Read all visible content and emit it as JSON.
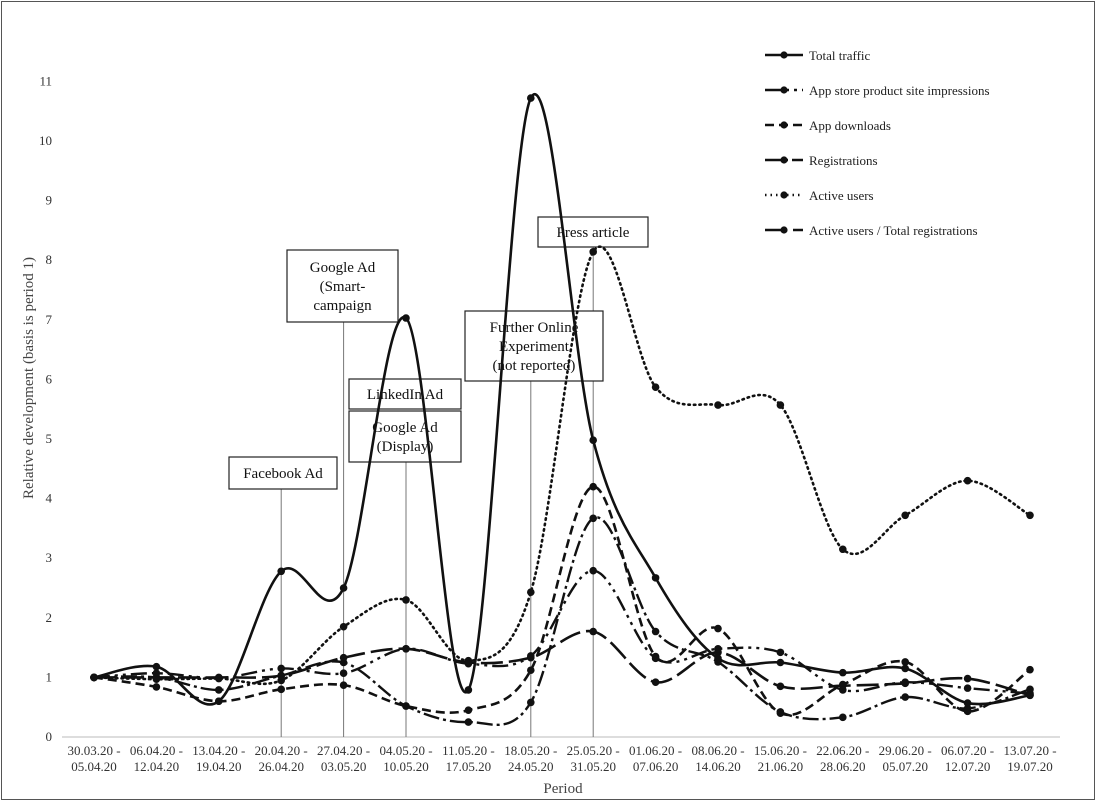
{
  "chart_data": {
    "type": "line",
    "xlabel": "Period",
    "ylabel": "Relative development (basis is period 1)",
    "ylim": [
      0,
      11
    ],
    "yticks": [
      0,
      1,
      2,
      3,
      4,
      5,
      6,
      7,
      8,
      9,
      10,
      11
    ],
    "grid": false,
    "legend_position": "top-right",
    "categories": [
      [
        "30.03.20 -",
        "05.04.20"
      ],
      [
        "06.04.20 -",
        "12.04.20"
      ],
      [
        "13.04.20 -",
        "19.04.20"
      ],
      [
        "20.04.20 -",
        "26.04.20"
      ],
      [
        "27.04.20 -",
        "03.05.20"
      ],
      [
        "04.05.20 -",
        "10.05.20"
      ],
      [
        "11.05.20 -",
        "17.05.20"
      ],
      [
        "18.05.20 -",
        "24.05.20"
      ],
      [
        "25.05.20 -",
        "31.05.20"
      ],
      [
        "01.06.20 -",
        "07.06.20"
      ],
      [
        "08.06.20 -",
        "14.06.20"
      ],
      [
        "15.06.20 -",
        "21.06.20"
      ],
      [
        "22.06.20 -",
        "28.06.20"
      ],
      [
        "29.06.20 -",
        "05.07.20"
      ],
      [
        "06.07.20 -",
        "12.07.20"
      ],
      [
        "13.07.20 -",
        "19.07.20"
      ]
    ],
    "series": [
      {
        "name": "Total traffic",
        "dash": "",
        "width": 2.6,
        "values": [
          1.0,
          1.18,
          0.6,
          2.78,
          2.5,
          7.03,
          0.79,
          10.72,
          4.98,
          2.67,
          1.32,
          1.25,
          1.08,
          1.15,
          0.57,
          0.7
        ]
      },
      {
        "name": "App store product site impressions",
        "dash": "16 5 3 5 3 5",
        "width": 2.4,
        "values": [
          1.0,
          1.07,
          0.99,
          1.15,
          1.07,
          1.48,
          1.23,
          1.36,
          2.79,
          1.32,
          1.48,
          1.42,
          0.79,
          0.92,
          0.82,
          0.73
        ]
      },
      {
        "name": "App downloads",
        "dash": "9 5",
        "width": 2.6,
        "values": [
          1.0,
          0.84,
          0.6,
          0.8,
          0.87,
          0.52,
          0.45,
          1.12,
          4.2,
          1.35,
          1.82,
          0.4,
          0.88,
          1.26,
          0.43,
          1.13
        ]
      },
      {
        "name": "Registrations",
        "dash": "16 4 3 4",
        "width": 2.4,
        "values": [
          1.0,
          1.0,
          0.79,
          1.03,
          1.25,
          0.52,
          0.25,
          0.58,
          3.67,
          1.77,
          1.26,
          0.42,
          0.33,
          0.67,
          0.48,
          0.8
        ]
      },
      {
        "name": "Active users",
        "dash": "1.5 4",
        "width": 2.6,
        "values": [
          1.0,
          0.97,
          0.98,
          0.95,
          1.85,
          2.3,
          1.28,
          2.43,
          8.14,
          5.87,
          5.57,
          5.57,
          3.15,
          3.72,
          4.3,
          3.72
        ]
      },
      {
        "name": "Active users / Total registrations",
        "dash": "22 6",
        "width": 2.6,
        "values": [
          1.0,
          1.0,
          1.0,
          1.03,
          1.33,
          1.48,
          1.25,
          1.33,
          1.77,
          0.92,
          1.42,
          0.85,
          0.86,
          0.9,
          0.98,
          0.7
        ]
      }
    ],
    "annotations": [
      {
        "lines": [
          "Facebook Ad"
        ],
        "category_index": 3
      },
      {
        "lines": [
          "Google Ad",
          "(Smart-",
          "campaign"
        ],
        "category_index": 4
      },
      {
        "lines": [
          "LinkedIn Ad"
        ],
        "category_index": 5
      },
      {
        "lines": [
          "Google Ad",
          "(Display)"
        ],
        "category_index": 5
      },
      {
        "lines": [
          "Further Online",
          "Experiment",
          "(not reported)"
        ],
        "category_index": 7
      },
      {
        "lines": [
          "Press article"
        ],
        "category_index": 8
      }
    ]
  }
}
